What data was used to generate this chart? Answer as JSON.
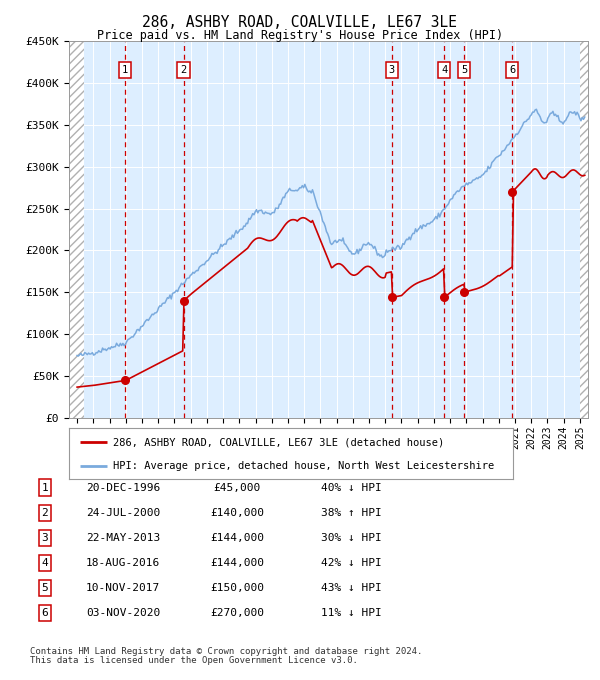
{
  "title": "286, ASHBY ROAD, COALVILLE, LE67 3LE",
  "subtitle": "Price paid vs. HM Land Registry's House Price Index (HPI)",
  "legend_line1": "286, ASHBY ROAD, COALVILLE, LE67 3LE (detached house)",
  "legend_line2": "HPI: Average price, detached house, North West Leicestershire",
  "footnote1": "Contains HM Land Registry data © Crown copyright and database right 2024.",
  "footnote2": "This data is licensed under the Open Government Licence v3.0.",
  "transactions": [
    {
      "num": 1,
      "date": "20-DEC-1996",
      "price": 45000,
      "rel": "40% ↓ HPI",
      "year": 1996.97
    },
    {
      "num": 2,
      "date": "24-JUL-2000",
      "price": 140000,
      "rel": "38% ↑ HPI",
      "year": 2000.56
    },
    {
      "num": 3,
      "date": "22-MAY-2013",
      "price": 144000,
      "rel": "30% ↓ HPI",
      "year": 2013.39
    },
    {
      "num": 4,
      "date": "18-AUG-2016",
      "price": 144000,
      "rel": "42% ↓ HPI",
      "year": 2016.63
    },
    {
      "num": 5,
      "date": "10-NOV-2017",
      "price": 150000,
      "rel": "43% ↓ HPI",
      "year": 2017.86
    },
    {
      "num": 6,
      "date": "03-NOV-2020",
      "price": 270000,
      "rel": "11% ↓ HPI",
      "year": 2020.84
    }
  ],
  "hpi_color": "#7aaadd",
  "price_color": "#cc0000",
  "bg_color": "#ddeeff",
  "dashed_color": "#cc0000",
  "ylim": [
    0,
    450000
  ],
  "xlim_start": 1993.5,
  "xlim_end": 2025.5,
  "hatch_left_end": 1994.42,
  "hatch_right_start": 2025.0
}
